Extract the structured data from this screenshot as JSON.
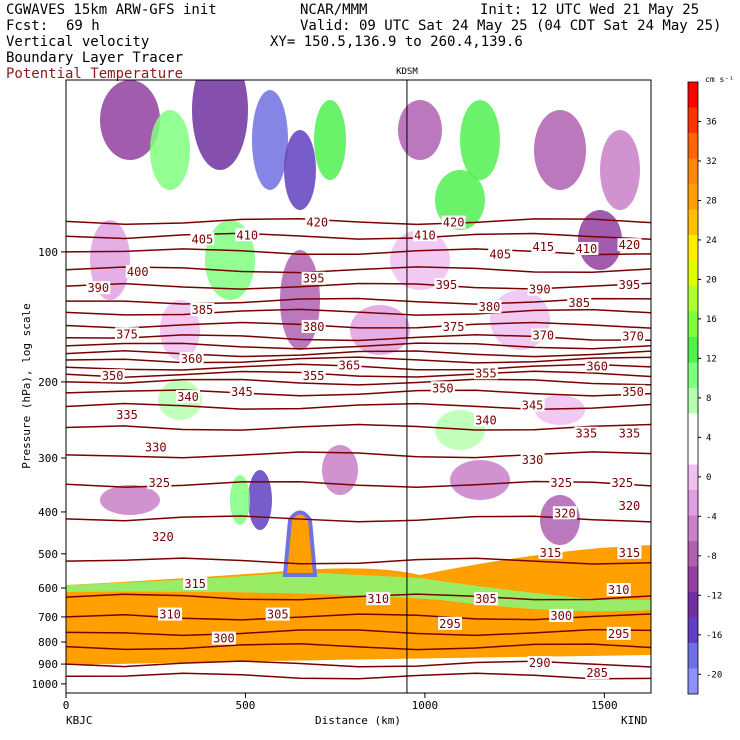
{
  "header": {
    "model": "CGWAVES 15km ARW-GFS init",
    "fcst_label": "Fcst:",
    "fcst_value": "69 h",
    "org": "NCAR/MMM",
    "init": "Init: 12 UTC Wed 21 May 25",
    "valid": "Valid: 09 UTC Sat 24 May 25 (04 CDT Sat 24 May 25)",
    "xy": "XY= 150.5,136.9 to 260.4,139.6",
    "field1": "Vertical velocity",
    "field2": "Boundary Layer Tracer",
    "field3": "Potential Temperature",
    "field3_color": "#8b1a1a"
  },
  "chart_data": {
    "type": "heatmap",
    "xlabel": "Distance (km)",
    "ylabel": "Pressure (hPa), log scale",
    "x_ticks": [
      "0",
      "500",
      "1000",
      "1500"
    ],
    "x_tick_values": [
      0,
      500,
      1000,
      1500
    ],
    "xlim": [
      0,
      1630
    ],
    "y_ticks": [
      "100",
      "200",
      "300",
      "400",
      "500",
      "600",
      "700",
      "800",
      "900",
      "1000"
    ],
    "y_tick_values": [
      100,
      200,
      300,
      400,
      500,
      600,
      700,
      800,
      900,
      1000
    ],
    "ylim": [
      1050,
      40
    ],
    "y_scale": "log",
    "left_endpoint": "KBJC",
    "right_endpoint": "KIND",
    "marker_label": "KDSM",
    "marker_x": 950,
    "colorbar": {
      "units": "cm s⁻¹",
      "labels": [
        "36",
        "32",
        "28",
        "24",
        "20",
        "16",
        "12",
        "8",
        "4",
        "0",
        "-4",
        "-8",
        "-12",
        "-16",
        "-20"
      ],
      "label_values": [
        36,
        32,
        28,
        24,
        20,
        16,
        12,
        8,
        4,
        0,
        -4,
        -8,
        -12,
        -16,
        -20
      ],
      "colors": [
        "#ff0000",
        "#ff3300",
        "#ff6600",
        "#ff8800",
        "#ffa000",
        "#ffc000",
        "#ffee00",
        "#e0ff00",
        "#b0ff30",
        "#80ff40",
        "#50f050",
        "#80ff80",
        "#b8ffb0",
        "#ffffff",
        "#ffffff",
        "#f0c0f0",
        "#e0a0e0",
        "#c880c8",
        "#b060b0",
        "#9040a0",
        "#7030a0",
        "#6040c0",
        "#7070e0",
        "#9090ff"
      ]
    },
    "theta_contours": [
      {
        "label": "420",
        "p": 85
      },
      {
        "label": "415",
        "p": 92
      },
      {
        "label": "410",
        "p": 100
      },
      {
        "label": "405",
        "p": 110
      },
      {
        "label": "400",
        "p": 120
      },
      {
        "label": "395",
        "p": 130
      },
      {
        "label": "390",
        "p": 138
      },
      {
        "label": "385",
        "p": 148
      },
      {
        "label": "380",
        "p": 158
      },
      {
        "label": "375",
        "p": 165
      },
      {
        "label": "370",
        "p": 172
      },
      {
        "label": "365",
        "p": 178
      },
      {
        "label": "360",
        "p": 185
      },
      {
        "label": "355",
        "p": 192
      },
      {
        "label": "350",
        "p": 200
      },
      {
        "label": "345",
        "p": 212
      },
      {
        "label": "340",
        "p": 228
      },
      {
        "label": "335",
        "p": 255
      },
      {
        "label": "330",
        "p": 295
      },
      {
        "label": "325",
        "p": 345
      },
      {
        "label": "320",
        "p": 415
      },
      {
        "label": "315",
        "p": 520
      },
      {
        "label": "310",
        "p": 630
      },
      {
        "label": "305",
        "p": 700
      },
      {
        "label": "300",
        "p": 760
      },
      {
        "label": "295",
        "p": 820
      },
      {
        "label": "290",
        "p": 900
      },
      {
        "label": "285",
        "p": 960
      }
    ],
    "contour_labels": [
      {
        "text": "420",
        "x": 700,
        "p": 86
      },
      {
        "text": "410",
        "x": 505,
        "p": 92
      },
      {
        "text": "405",
        "x": 380,
        "p": 94
      },
      {
        "text": "400",
        "x": 200,
        "p": 112
      },
      {
        "text": "390",
        "x": 90,
        "p": 122
      },
      {
        "text": "395",
        "x": 690,
        "p": 116
      },
      {
        "text": "385",
        "x": 380,
        "p": 137
      },
      {
        "text": "380",
        "x": 690,
        "p": 150
      },
      {
        "text": "375",
        "x": 170,
        "p": 156
      },
      {
        "text": "365",
        "x": 790,
        "p": 184
      },
      {
        "text": "360",
        "x": 350,
        "p": 178
      },
      {
        "text": "350",
        "x": 130,
        "p": 195
      },
      {
        "text": "355",
        "x": 690,
        "p": 195
      },
      {
        "text": "345",
        "x": 490,
        "p": 212
      },
      {
        "text": "340",
        "x": 340,
        "p": 218
      },
      {
        "text": "335",
        "x": 170,
        "p": 240
      },
      {
        "text": "330",
        "x": 250,
        "p": 285
      },
      {
        "text": "325",
        "x": 260,
        "p": 345
      },
      {
        "text": "320",
        "x": 270,
        "p": 460
      },
      {
        "text": "315",
        "x": 360,
        "p": 590
      },
      {
        "text": "310",
        "x": 290,
        "p": 695
      },
      {
        "text": "300",
        "x": 440,
        "p": 790
      },
      {
        "text": "305",
        "x": 590,
        "p": 695
      },
      {
        "text": "295",
        "x": 1070,
        "p": 730
      },
      {
        "text": "420",
        "x": 1080,
        "p": 86
      },
      {
        "text": "410",
        "x": 1000,
        "p": 92
      },
      {
        "text": "395",
        "x": 1060,
        "p": 120
      },
      {
        "text": "405",
        "x": 1210,
        "p": 102
      },
      {
        "text": "415",
        "x": 1330,
        "p": 98
      },
      {
        "text": "410",
        "x": 1450,
        "p": 99
      },
      {
        "text": "420",
        "x": 1570,
        "p": 97
      },
      {
        "text": "395",
        "x": 1570,
        "p": 120
      },
      {
        "text": "390",
        "x": 1320,
        "p": 123
      },
      {
        "text": "385",
        "x": 1430,
        "p": 132
      },
      {
        "text": "380",
        "x": 1180,
        "p": 135
      },
      {
        "text": "375",
        "x": 1080,
        "p": 150
      },
      {
        "text": "370",
        "x": 1330,
        "p": 157
      },
      {
        "text": "370",
        "x": 1580,
        "p": 158
      },
      {
        "text": "360",
        "x": 1480,
        "p": 185
      },
      {
        "text": "350",
        "x": 1580,
        "p": 212
      },
      {
        "text": "355",
        "x": 1170,
        "p": 192
      },
      {
        "text": "350",
        "x": 1050,
        "p": 208
      },
      {
        "text": "345",
        "x": 1300,
        "p": 228
      },
      {
        "text": "340",
        "x": 1170,
        "p": 247
      },
      {
        "text": "335",
        "x": 1450,
        "p": 265
      },
      {
        "text": "335",
        "x": 1570,
        "p": 265
      },
      {
        "text": "330",
        "x": 1300,
        "p": 305
      },
      {
        "text": "325",
        "x": 1380,
        "p": 345
      },
      {
        "text": "325",
        "x": 1550,
        "p": 345
      },
      {
        "text": "320",
        "x": 1390,
        "p": 405
      },
      {
        "text": "320",
        "x": 1570,
        "p": 390
      },
      {
        "text": "315",
        "x": 1350,
        "p": 500
      },
      {
        "text": "315",
        "x": 1570,
        "p": 500
      },
      {
        "text": "310",
        "x": 1540,
        "p": 610
      },
      {
        "text": "310",
        "x": 870,
        "p": 640
      },
      {
        "text": "305",
        "x": 1170,
        "p": 640
      },
      {
        "text": "300",
        "x": 1380,
        "p": 700
      },
      {
        "text": "295",
        "x": 1540,
        "p": 770
      },
      {
        "text": "290",
        "x": 1320,
        "p": 900
      },
      {
        "text": "285",
        "x": 1480,
        "p": 950
      }
    ]
  }
}
